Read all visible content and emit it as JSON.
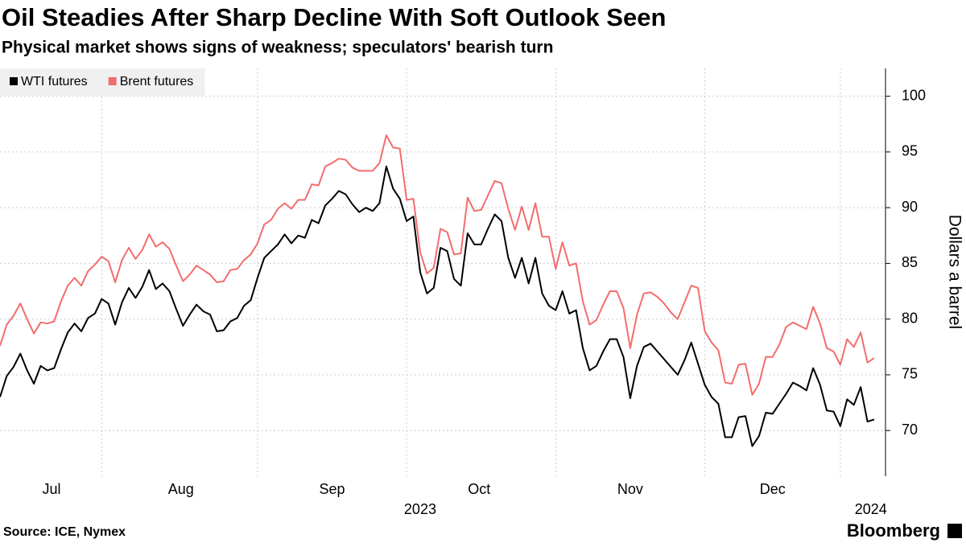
{
  "chart_data": {
    "type": "line",
    "title": "Oil Steadies After Sharp Decline With Soft Outlook Seen",
    "subtitle": "Physical market shows signs of weakness; speculators' bearish turn",
    "y_label": "Dollars a barrel",
    "source": "Source: ICE, Nymex",
    "brand": "Bloomberg",
    "series": [
      {
        "name": "WTI futures",
        "color": "#000000",
        "values": [
          73.0,
          74.9,
          75.7,
          76.9,
          75.4,
          74.2,
          75.8,
          75.4,
          75.6,
          77.3,
          78.8,
          79.6,
          78.9,
          80.1,
          80.5,
          81.8,
          81.4,
          79.5,
          81.5,
          82.8,
          81.9,
          82.9,
          84.4,
          82.7,
          83.2,
          82.5,
          80.9,
          79.4,
          80.4,
          81.3,
          80.7,
          80.4,
          78.9,
          79.0,
          79.8,
          80.1,
          81.2,
          81.7,
          83.7,
          85.5,
          86.1,
          86.7,
          87.6,
          86.8,
          87.5,
          87.3,
          88.9,
          88.6,
          90.2,
          90.8,
          91.5,
          91.2,
          90.3,
          89.6,
          90.0,
          89.7,
          90.4,
          93.7,
          91.7,
          90.8,
          88.8,
          89.2,
          84.2,
          82.3,
          82.8,
          86.4,
          86.1,
          83.6,
          83.0,
          87.7,
          86.7,
          86.7,
          88.1,
          89.4,
          88.8,
          85.5,
          83.7,
          85.5,
          83.2,
          85.5,
          82.3,
          81.2,
          80.8,
          82.5,
          80.5,
          80.8,
          77.4,
          75.4,
          75.8,
          77.1,
          78.2,
          78.2,
          76.6,
          72.9,
          75.8,
          77.5,
          77.8,
          77.1,
          76.4,
          75.7,
          75.0,
          76.3,
          77.9,
          76.0,
          74.1,
          73.0,
          72.4,
          69.4,
          69.4,
          71.2,
          71.3,
          68.6,
          69.5,
          71.6,
          71.5,
          72.4,
          73.3,
          74.3,
          74.0,
          73.6,
          75.6,
          74.1,
          71.8,
          71.7,
          70.4,
          72.8,
          72.3,
          73.9,
          70.8,
          71.0
        ]
      },
      {
        "name": "Brent futures",
        "color": "#f26d6d",
        "values": [
          77.6,
          79.5,
          80.3,
          81.4,
          80.0,
          78.7,
          79.7,
          79.6,
          79.8,
          81.6,
          83.0,
          83.7,
          83.0,
          84.3,
          84.9,
          85.6,
          85.2,
          83.3,
          85.3,
          86.4,
          85.4,
          86.2,
          87.6,
          86.5,
          86.9,
          86.3,
          84.8,
          83.4,
          84.0,
          84.8,
          84.4,
          84.0,
          83.3,
          83.4,
          84.4,
          84.5,
          85.3,
          85.8,
          86.8,
          88.5,
          88.9,
          89.9,
          90.4,
          89.9,
          90.7,
          90.7,
          92.1,
          92.0,
          93.7,
          94.0,
          94.4,
          94.3,
          93.6,
          93.3,
          93.3,
          93.3,
          94.0,
          96.5,
          95.4,
          95.3,
          90.7,
          90.8,
          86.0,
          84.1,
          84.6,
          88.1,
          87.8,
          85.8,
          85.9,
          90.9,
          89.7,
          89.8,
          91.1,
          92.4,
          92.2,
          89.9,
          88.0,
          90.1,
          88.0,
          90.4,
          87.4,
          87.4,
          84.5,
          86.9,
          84.8,
          85.0,
          81.6,
          79.5,
          79.9,
          81.3,
          82.5,
          82.5,
          81.0,
          77.4,
          80.4,
          82.3,
          82.4,
          82.0,
          81.4,
          80.6,
          80.0,
          81.5,
          83.0,
          82.8,
          78.9,
          77.9,
          77.2,
          74.3,
          74.2,
          75.9,
          76.0,
          73.2,
          74.2,
          76.6,
          76.6,
          77.7,
          79.3,
          79.7,
          79.4,
          79.1,
          81.1,
          79.6,
          77.4,
          77.1,
          75.9,
          78.2,
          77.5,
          78.8,
          76.1,
          76.5
        ]
      }
    ],
    "xlim": [
      0,
      129
    ],
    "xticks": [
      {
        "value": 7.6,
        "label": "Jul"
      },
      {
        "value": 26.7,
        "label": "Aug"
      },
      {
        "value": 49,
        "label": "Sep"
      },
      {
        "value": 70.7,
        "label": "Oct"
      },
      {
        "value": 93,
        "label": "Nov"
      },
      {
        "value": 114,
        "label": "Dec"
      }
    ],
    "year_ticks": [
      {
        "value": 62,
        "label": "2023"
      },
      {
        "value": 128.5,
        "label": "2024"
      }
    ],
    "x_grid": [
      15,
      38,
      60,
      82,
      104,
      124
    ],
    "ylim": [
      65.9,
      102.5
    ],
    "yticks": [
      70,
      75,
      80,
      85,
      90,
      95,
      100
    ],
    "grid": true,
    "legend": "top-left"
  }
}
